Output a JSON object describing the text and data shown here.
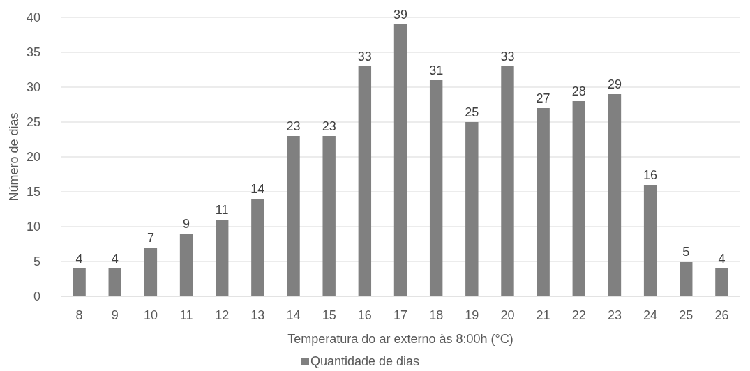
{
  "chart_data": {
    "type": "bar",
    "xlabel": "Temperatura do ar externo às 8:00h (°C)",
    "ylabel": "Número de dias",
    "categories": [
      "8",
      "9",
      "10",
      "11",
      "12",
      "13",
      "14",
      "15",
      "16",
      "17",
      "18",
      "19",
      "20",
      "21",
      "22",
      "23",
      "24",
      "25",
      "26"
    ],
    "series": [
      {
        "name": "Quantidade de dias",
        "color": "#808080",
        "values": [
          4,
          4,
          7,
          9,
          11,
          14,
          23,
          23,
          33,
          39,
          31,
          25,
          33,
          27,
          28,
          29,
          16,
          5,
          4
        ]
      }
    ],
    "ylim": [
      0,
      40
    ],
    "yticks": [
      0,
      5,
      10,
      15,
      20,
      25,
      30,
      35,
      40
    ],
    "grid": "y",
    "legend": "bottom",
    "data_labels": true
  }
}
